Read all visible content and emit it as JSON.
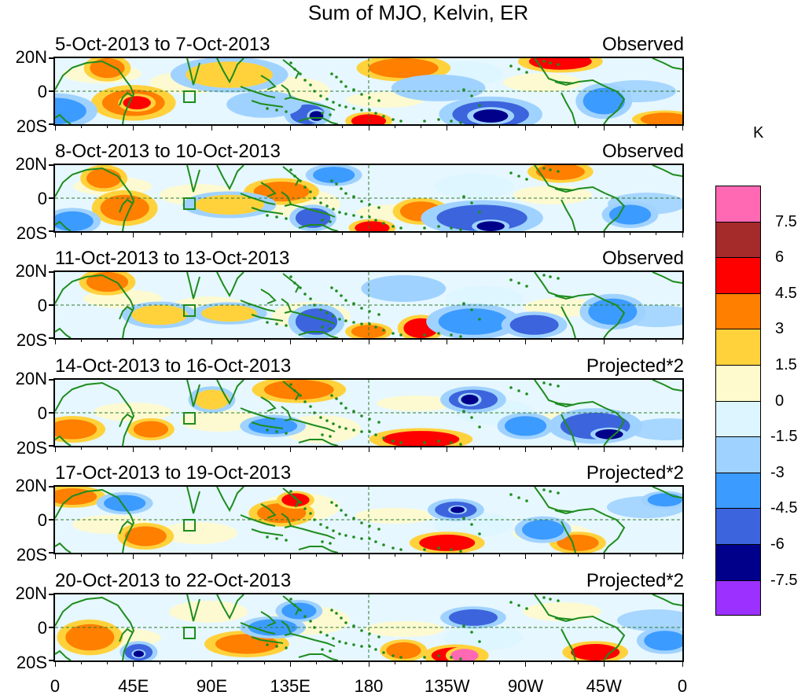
{
  "figure": {
    "title": "Sum of MJO, Kelvin, ER",
    "unit": "K"
  },
  "y_axis": {
    "labels": [
      "20N",
      "0",
      "20S"
    ]
  },
  "x_axis": {
    "labels": [
      "0",
      "45E",
      "90E",
      "135E",
      "180",
      "135W",
      "90W",
      "45W",
      "0"
    ],
    "longitudes": [
      0,
      45,
      90,
      135,
      180,
      225,
      270,
      315,
      360
    ]
  },
  "panels": [
    {
      "date_range": "5-Oct-2013 to 7-Oct-2013",
      "status": "Observed"
    },
    {
      "date_range": "8-Oct-2013 to 10-Oct-2013",
      "status": "Observed"
    },
    {
      "date_range": "11-Oct-2013 to 13-Oct-2013",
      "status": "Observed"
    },
    {
      "date_range": "14-Oct-2013 to 16-Oct-2013",
      "status": "Projected*2"
    },
    {
      "date_range": "17-Oct-2013 to 19-Oct-2013",
      "status": "Projected*2"
    },
    {
      "date_range": "20-Oct-2013 to 22-Oct-2013",
      "status": "Projected*2"
    }
  ],
  "colorbar": {
    "labels": [
      "7.5",
      "6",
      "4.5",
      "3",
      "1.5",
      "0",
      "-1.5",
      "-3",
      "-4.5",
      "-6",
      "-7.5"
    ],
    "colors": [
      "#ff69b4",
      "#a52a2a",
      "#ff0000",
      "#ff7f00",
      "#ffd23c",
      "#fffacd",
      "#dcf5ff",
      "#a0d2ff",
      "#3c9bff",
      "#3c64dc",
      "#00008b",
      "#9b30ff"
    ]
  },
  "map_colors": {
    "coast": "#1e8c1e",
    "equator_line": "#2d7a2d"
  },
  "blobs": [
    [
      {
        "lon": 45,
        "lat": -7,
        "rx": 18,
        "ry": 8,
        "c": "#ff7f00"
      },
      {
        "lon": 47,
        "lat": -7,
        "rx": 8,
        "ry": 4,
        "c": "#ff0000"
      },
      {
        "lon": 30,
        "lat": 14,
        "rx": 10,
        "ry": 6,
        "c": "#ff7f00"
      },
      {
        "lon": 0,
        "lat": -12,
        "rx": 18,
        "ry": 8,
        "c": "#3c9bff"
      },
      {
        "lon": 100,
        "lat": 10,
        "rx": 25,
        "ry": 8,
        "c": "#ffd23c"
      },
      {
        "lon": 145,
        "lat": -14,
        "rx": 10,
        "ry": 6,
        "c": "#3c64dc"
      },
      {
        "lon": 150,
        "lat": -15,
        "rx": 4,
        "ry": 3,
        "c": "#00008b"
      },
      {
        "lon": 180,
        "lat": -18,
        "rx": 10,
        "ry": 4,
        "c": "#ff0000"
      },
      {
        "lon": 200,
        "lat": 14,
        "rx": 20,
        "ry": 6,
        "c": "#ff7f00"
      },
      {
        "lon": 250,
        "lat": -14,
        "rx": 22,
        "ry": 8,
        "c": "#3c64dc"
      },
      {
        "lon": 250,
        "lat": -15,
        "rx": 10,
        "ry": 4,
        "c": "#00008b"
      },
      {
        "lon": 290,
        "lat": 18,
        "rx": 18,
        "ry": 5,
        "c": "#ff0000"
      },
      {
        "lon": 315,
        "lat": -6,
        "rx": 12,
        "ry": 8,
        "c": "#3c9bff"
      },
      {
        "lon": 350,
        "lat": -17,
        "rx": 14,
        "ry": 4,
        "c": "#ff7f00"
      },
      {
        "lon": 120,
        "lat": -8,
        "rx": 16,
        "ry": 6,
        "c": "#a0d2ff"
      },
      {
        "lon": 220,
        "lat": 2,
        "rx": 20,
        "ry": 6,
        "c": "#a0d2ff"
      }
    ],
    [
      {
        "lon": 40,
        "lat": -6,
        "rx": 14,
        "ry": 8,
        "c": "#ff7f00"
      },
      {
        "lon": 28,
        "lat": 12,
        "rx": 10,
        "ry": 6,
        "c": "#ff7f00"
      },
      {
        "lon": 10,
        "lat": -14,
        "rx": 12,
        "ry": 6,
        "c": "#3c9bff"
      },
      {
        "lon": 130,
        "lat": 4,
        "rx": 16,
        "ry": 6,
        "c": "#ff7f00"
      },
      {
        "lon": 148,
        "lat": -12,
        "rx": 10,
        "ry": 6,
        "c": "#3c64dc"
      },
      {
        "lon": 182,
        "lat": -18,
        "rx": 10,
        "ry": 4,
        "c": "#ff0000"
      },
      {
        "lon": 210,
        "lat": -8,
        "rx": 12,
        "ry": 6,
        "c": "#ff7f00"
      },
      {
        "lon": 245,
        "lat": -12,
        "rx": 26,
        "ry": 8,
        "c": "#3c64dc"
      },
      {
        "lon": 250,
        "lat": -17,
        "rx": 8,
        "ry": 3,
        "c": "#00008b"
      },
      {
        "lon": 290,
        "lat": 16,
        "rx": 14,
        "ry": 5,
        "c": "#ff7f00"
      },
      {
        "lon": 330,
        "lat": -10,
        "rx": 12,
        "ry": 6,
        "c": "#3c9bff"
      },
      {
        "lon": 160,
        "lat": 14,
        "rx": 12,
        "ry": 5,
        "c": "#3c9bff"
      },
      {
        "lon": 100,
        "lat": -4,
        "rx": 20,
        "ry": 6,
        "c": "#ffd23c"
      }
    ],
    [
      {
        "lon": 30,
        "lat": 14,
        "rx": 12,
        "ry": 6,
        "c": "#ff7f00"
      },
      {
        "lon": 100,
        "lat": -5,
        "rx": 16,
        "ry": 5,
        "c": "#ffd23c"
      },
      {
        "lon": 150,
        "lat": -10,
        "rx": 12,
        "ry": 8,
        "c": "#3c64dc"
      },
      {
        "lon": 180,
        "lat": -16,
        "rx": 10,
        "ry": 4,
        "c": "#ff7f00"
      },
      {
        "lon": 210,
        "lat": -14,
        "rx": 10,
        "ry": 6,
        "c": "#ff0000"
      },
      {
        "lon": 240,
        "lat": -10,
        "rx": 20,
        "ry": 8,
        "c": "#3c9bff"
      },
      {
        "lon": 275,
        "lat": -12,
        "rx": 14,
        "ry": 6,
        "c": "#3c64dc"
      },
      {
        "lon": 320,
        "lat": -4,
        "rx": 14,
        "ry": 8,
        "c": "#3c9bff"
      },
      {
        "lon": 200,
        "lat": 10,
        "rx": 18,
        "ry": 6,
        "c": "#a0d2ff"
      },
      {
        "lon": 60,
        "lat": -6,
        "rx": 16,
        "ry": 6,
        "c": "#ffd23c"
      }
    ],
    [
      {
        "lon": 10,
        "lat": -10,
        "rx": 14,
        "ry": 6,
        "c": "#ff7f00"
      },
      {
        "lon": 55,
        "lat": -10,
        "rx": 10,
        "ry": 5,
        "c": "#ff7f00"
      },
      {
        "lon": 140,
        "lat": 14,
        "rx": 20,
        "ry": 6,
        "c": "#ff7f00"
      },
      {
        "lon": 125,
        "lat": -8,
        "rx": 14,
        "ry": 5,
        "c": "#3c9bff"
      },
      {
        "lon": 210,
        "lat": -16,
        "rx": 22,
        "ry": 5,
        "c": "#ff0000"
      },
      {
        "lon": 240,
        "lat": 8,
        "rx": 14,
        "ry": 6,
        "c": "#3c64dc"
      },
      {
        "lon": 238,
        "lat": 8,
        "rx": 5,
        "ry": 3,
        "c": "#00008b"
      },
      {
        "lon": 310,
        "lat": -8,
        "rx": 20,
        "ry": 8,
        "c": "#3c64dc"
      },
      {
        "lon": 318,
        "lat": -13,
        "rx": 8,
        "ry": 3,
        "c": "#00008b"
      },
      {
        "lon": 270,
        "lat": -8,
        "rx": 12,
        "ry": 6,
        "c": "#3c9bff"
      },
      {
        "lon": 90,
        "lat": 8,
        "rx": 10,
        "ry": 6,
        "c": "#ffd23c"
      }
    ],
    [
      {
        "lon": 10,
        "lat": 14,
        "rx": 14,
        "ry": 5,
        "c": "#ff7f00"
      },
      {
        "lon": 52,
        "lat": -10,
        "rx": 12,
        "ry": 6,
        "c": "#ff7f00"
      },
      {
        "lon": 40,
        "lat": 10,
        "rx": 12,
        "ry": 5,
        "c": "#3c9bff"
      },
      {
        "lon": 130,
        "lat": 4,
        "rx": 14,
        "ry": 6,
        "c": "#ff7f00"
      },
      {
        "lon": 138,
        "lat": 12,
        "rx": 8,
        "ry": 4,
        "c": "#ff0000"
      },
      {
        "lon": 225,
        "lat": -14,
        "rx": 16,
        "ry": 5,
        "c": "#ff0000"
      },
      {
        "lon": 230,
        "lat": 6,
        "rx": 12,
        "ry": 5,
        "c": "#3c64dc"
      },
      {
        "lon": 231,
        "lat": 6,
        "rx": 4,
        "ry": 2,
        "c": "#00008b"
      },
      {
        "lon": 300,
        "lat": -14,
        "rx": 12,
        "ry": 5,
        "c": "#ff7f00"
      },
      {
        "lon": 280,
        "lat": -6,
        "rx": 12,
        "ry": 6,
        "c": "#3c9bff"
      },
      {
        "lon": 350,
        "lat": 12,
        "rx": 10,
        "ry": 4,
        "c": "#3c9bff"
      }
    ],
    [
      {
        "lon": 20,
        "lat": -6,
        "rx": 14,
        "ry": 8,
        "c": "#ff7f00"
      },
      {
        "lon": 48,
        "lat": -15,
        "rx": 8,
        "ry": 5,
        "c": "#3c64dc"
      },
      {
        "lon": 48,
        "lat": -16,
        "rx": 3,
        "ry": 2,
        "c": "#00008b"
      },
      {
        "lon": 110,
        "lat": -10,
        "rx": 18,
        "ry": 6,
        "c": "#ff7f00"
      },
      {
        "lon": 125,
        "lat": 0,
        "rx": 14,
        "ry": 5,
        "c": "#3c9bff"
      },
      {
        "lon": 230,
        "lat": -17,
        "rx": 14,
        "ry": 5,
        "c": "#ff0000"
      },
      {
        "lon": 235,
        "lat": -17,
        "rx": 8,
        "ry": 4,
        "c": "#ff69b4"
      },
      {
        "lon": 240,
        "lat": 6,
        "rx": 14,
        "ry": 5,
        "c": "#3c64dc"
      },
      {
        "lon": 310,
        "lat": -15,
        "rx": 14,
        "ry": 5,
        "c": "#ff0000"
      },
      {
        "lon": 200,
        "lat": -14,
        "rx": 10,
        "ry": 5,
        "c": "#ff7f00"
      },
      {
        "lon": 350,
        "lat": -8,
        "rx": 12,
        "ry": 6,
        "c": "#3c9bff"
      },
      {
        "lon": 140,
        "lat": 10,
        "rx": 10,
        "ry": 5,
        "c": "#3c9bff"
      }
    ]
  ]
}
